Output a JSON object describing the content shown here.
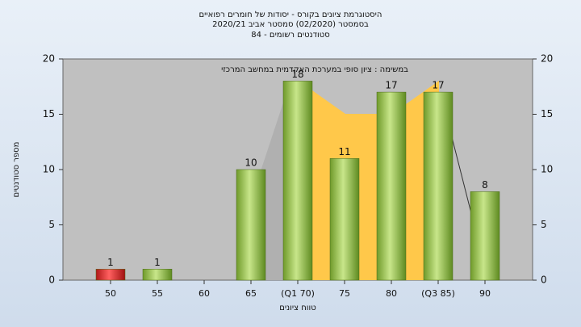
{
  "chart_data": {
    "type": "bar",
    "title": "היסטוגרמת ציונים בקורס - יסודות של חומרים רפואיים",
    "subtitle": "בסמסטר  (02/2020)  סמסטר אביב 2020/21",
    "subtitle2": "סטודנטים רשומים - 84",
    "annotation": "במשימה : ציון סופי במערכת האקדמית במחשב המרכזי",
    "x_label": "טווח ציונים",
    "y_label": "מספר סטודנטים",
    "categories": [
      "50",
      "55",
      "60",
      "65",
      "(Q1 70)",
      "75",
      "80",
      "(Q3 85)",
      "90"
    ],
    "values": [
      1,
      1,
      0,
      10,
      18,
      11,
      17,
      17,
      8
    ],
    "colors": [
      "#e03030",
      "#9fcf4a",
      "#9fcf4a",
      "#9fcf4a",
      "#9fcf4a",
      "#9fcf4a",
      "#9fcf4a",
      "#9fcf4a",
      "#9fcf4a"
    ],
    "ylim": [
      0,
      20
    ],
    "yticks": [
      0,
      5,
      10,
      15,
      20
    ]
  }
}
